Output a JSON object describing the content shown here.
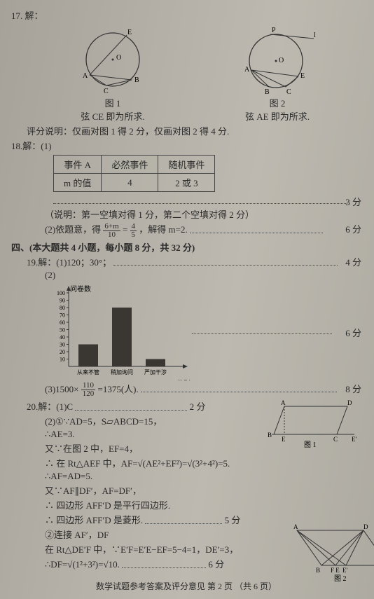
{
  "q17": {
    "label": "17. 解：",
    "fig1_caption": "图 1",
    "fig1_note": "弦 CE 即为所求.",
    "fig2_caption": "图 2",
    "fig2_note": "弦 AE 即为所求.",
    "scoring": "评分说明：仅画对图 1 得 2 分，仅画对图 2 得 4 分.",
    "circle1": {
      "labels": [
        "E",
        "O",
        "A",
        "B",
        "C"
      ]
    },
    "circle2": {
      "labels": [
        "P",
        "l",
        "O",
        "A",
        "B",
        "C",
        "E"
      ]
    }
  },
  "q18": {
    "label": "18.解：(1)",
    "table": {
      "headers": [
        "事件 A",
        "必然事件",
        "随机事件"
      ],
      "row": [
        "m 的值",
        "4",
        "2 或 3"
      ]
    },
    "score1": "3 分",
    "note": "（说明：第一空填对得 1 分，第二个空填对得 2 分）",
    "part2_prefix": "(2)依题意，得",
    "part2_eq_lhs_num": "6+m",
    "part2_eq_lhs_den": "10",
    "part2_eq_rhs_num": "4",
    "part2_eq_rhs_den": "5",
    "part2_eq_tail": "，解得 m=2.",
    "score2": "6 分"
  },
  "section4": "四、(本大题共 4 小题，每小题 8 分，共 32 分)",
  "q19": {
    "label": "19.解：(1)120；30°；",
    "score1": "4 分",
    "part2": "(2)",
    "chart": {
      "ylabel": "问卷数",
      "xlabel": "类别",
      "ymax": 100,
      "ytick_step": 10,
      "categories": [
        "从来不管",
        "稍加询问",
        "严加干涉"
      ],
      "values": [
        30,
        80,
        10
      ],
      "bar_color": "#3a3632",
      "axis_color": "#333",
      "bg": "transparent"
    },
    "score2": "6 分",
    "part3_prefix": "(3)1500×",
    "part3_num": "110",
    "part3_den": "120",
    "part3_tail": "=1375(人).",
    "score3": "8 分"
  },
  "q20": {
    "label": "20.解：(1)C",
    "score1": "2 分",
    "lines": [
      "(2)①∵AD=5，S▱ABCD=15，",
      "∴AE=3.",
      "又∵在图 2 中，EF=4，",
      "∴ 在 Rt△AEF 中，AF=√(AE²+EF²)=√(3²+4²)=5.",
      "∴AF=AD=5.",
      "又∵AF∥DF′，AF=DF′，",
      "∴ 四边形 AFF′D 是平行四边形.",
      "∴ 四边形 AFF′D 是菱形."
    ],
    "score2": "5 分",
    "lines2": [
      "②连接 AF′，DF",
      "在 Rt△DE′F 中，∵E′F=E′E−EF=5−4=1，DE′=3，",
      "∴DF=√(1²+3²)=√10."
    ],
    "score3": "6 分",
    "fig1_caption": "图 1",
    "fig2_caption": "图 2"
  },
  "footer": "数学试题参考答案及评分意见  第 2 页 （共 6 页）"
}
